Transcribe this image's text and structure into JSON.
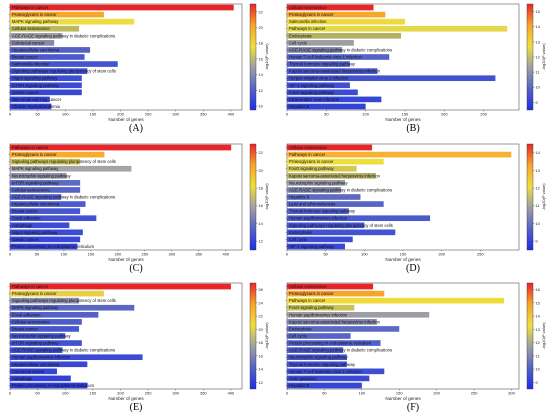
{
  "colormap": [
    "#e8262a",
    "#f7a52c",
    "#eedf3c",
    "#9e9ea6",
    "#5563c6",
    "#1e2de6"
  ],
  "chart_data": [
    {
      "type": "bar",
      "orientation": "horizontal",
      "panel_label": "(A)",
      "categories": [
        "Pathways in cancer",
        "Proteoglycans in cancer",
        "MAPK signaling pathway",
        "Cellular senescence",
        "AGE-RAGE signaling pathway in diabetic complications",
        "Colorectal cancer",
        "Hepatocellular carcinoma",
        "Breast cancer",
        "Salmonella infection",
        "Signaling pathways regulating pluripotency of stem cells",
        "Hippo signaling pathway",
        "mTOR signaling pathway",
        "Gastric cancer",
        "Non-small cell lung cancer",
        "Chronic myeloid leukemia"
      ],
      "values": [
        405,
        170,
        225,
        125,
        95,
        80,
        145,
        135,
        195,
        140,
        130,
        130,
        130,
        72,
        75
      ],
      "colors": [
        "#e8262a",
        "#f7a72b",
        "#eedd3b",
        "#bcb85c",
        "#a0a0a6",
        "#8789a8",
        "#5362c4",
        "#4a5acb",
        "#4454ce",
        "#4151d0",
        "#3e4ed2",
        "#3b4bd3",
        "#3848d5",
        "#3444d7",
        "#3141d9"
      ],
      "xlabel": "Number of genes",
      "xlim": [
        0,
        420
      ],
      "xticks": [
        0,
        50,
        100,
        150,
        200,
        250,
        300,
        350,
        400
      ],
      "colorbar": {
        "label": "-log10(P value)",
        "ticks": [
          22,
          20,
          18,
          16,
          14,
          12,
          10
        ],
        "range": [
          9.5,
          23
        ]
      }
    },
    {
      "type": "bar",
      "orientation": "horizontal",
      "panel_label": "(B)",
      "categories": [
        "Cellular senescence",
        "Proteoglycans in cancer",
        "Salmonella infection",
        "Pathways in cancer",
        "Endocytosis",
        "Cell cycle",
        "AGE-RAGE signaling pathway in diabetic complications",
        "Human T-cell leukemia virus 1 infection",
        "Thyroid hormone signaling pathway",
        "Kaposi sarcoma-associated herpesvirus infection",
        "Herpes simplex virus 1 infection",
        "HIF-1 signaling pathway",
        "FoxO signaling pathway",
        "Epstein-Barr virus infection",
        "Hepatitis B"
      ],
      "values": [
        110,
        125,
        150,
        280,
        145,
        85,
        70,
        130,
        80,
        115,
        265,
        80,
        90,
        120,
        100
      ],
      "colors": [
        "#e8262a",
        "#f6a82c",
        "#efd93d",
        "#e3d848",
        "#b5b162",
        "#9d9ea4",
        "#7e83ae",
        "#5563c5",
        "#4e5dc9",
        "#4858cc",
        "#4353cf",
        "#3f4fd1",
        "#3b4bd3",
        "#3747d5",
        "#3343d8"
      ],
      "xlabel": "Number of genes",
      "xlim": [
        0,
        295
      ],
      "xticks": [
        0,
        50,
        100,
        150,
        200,
        250
      ],
      "colorbar": {
        "label": "-log10(P value)",
        "ticks": [
          15,
          14,
          13,
          12,
          11,
          10,
          9
        ],
        "range": [
          8.5,
          15.5
        ]
      }
    },
    {
      "type": "bar",
      "orientation": "horizontal",
      "panel_label": "(C)",
      "categories": [
        "Pathways in cancer",
        "Proteoglycans in cancer",
        "Signaling pathways regulating pluripotency of stem cells",
        "MAPK signaling pathway",
        "Neurotrophin signaling pathway",
        "mTOR signaling pathway",
        "Cellular senescence",
        "AGE-RAGE signaling pathway in diabetic complications",
        "Hepatocellular carcinoma",
        "Breast cancer",
        "Focal adhesion",
        "Autophagy",
        "Hippo signaling pathway",
        "Gastric cancer",
        "Protein processing in endoplasmic reticulum"
      ],
      "values": [
        410,
        175,
        130,
        225,
        105,
        130,
        130,
        95,
        140,
        130,
        160,
        110,
        135,
        130,
        125
      ],
      "colors": [
        "#e8262a",
        "#f6ac2d",
        "#c6c055",
        "#a3a3a8",
        "#8d90ab",
        "#5d6ac2",
        "#5664c6",
        "#505fc9",
        "#4b5acc",
        "#4656ce",
        "#4252d0",
        "#3e4ed2",
        "#3b4bd4",
        "#3747d6",
        "#3343d8"
      ],
      "xlabel": "Number of genes",
      "xlim": [
        0,
        430
      ],
      "xticks": [
        0,
        50,
        100,
        150,
        200,
        250,
        300,
        350,
        400
      ],
      "colorbar": {
        "label": "-log10(P value)",
        "ticks": [
          22,
          20,
          18,
          16,
          14,
          12
        ],
        "range": [
          11,
          23
        ]
      }
    },
    {
      "type": "bar",
      "orientation": "horizontal",
      "panel_label": "(D)",
      "categories": [
        "Cellular senescence",
        "Pathways in cancer",
        "Proteoglycans in cancer",
        "FoxO signaling pathway",
        "Kaposi sarcoma-associated herpesvirus infection",
        "Neurotrophin signaling pathway",
        "AGE-RAGE signaling pathway in diabetic complications",
        "Hepatitis B",
        "Lipid and atherosclerosis",
        "Thyroid hormone signaling pathway",
        "Human papillomavirus infection",
        "Signaling pathways regulating pluripotency of stem cells",
        "Endocytosis",
        "Cell cycle",
        "HIF-1 signaling pathway"
      ],
      "values": [
        110,
        290,
        125,
        90,
        115,
        75,
        70,
        95,
        125,
        80,
        185,
        100,
        140,
        85,
        75
      ],
      "colors": [
        "#e8262a",
        "#f6b233",
        "#efdf3c",
        "#d3c951",
        "#b5b063",
        "#9a9ba5",
        "#7f84ae",
        "#5d6ac2",
        "#5664c6",
        "#505fc9",
        "#4b5acc",
        "#4656ce",
        "#4252d0",
        "#3d4dd3",
        "#3848d6"
      ],
      "xlabel": "Number of genes",
      "xlim": [
        0,
        300
      ],
      "xticks": [
        0,
        50,
        100,
        150,
        200,
        250
      ],
      "colorbar": {
        "label": "-log10(P value)",
        "ticks": [
          14,
          13,
          12,
          11,
          10,
          9
        ],
        "range": [
          8.5,
          14.5
        ]
      }
    },
    {
      "type": "bar",
      "orientation": "horizontal",
      "panel_label": "(E)",
      "categories": [
        "Pathways in cancer",
        "Proteoglycans in cancer",
        "Signaling pathways regulating pluripotency of stem cells",
        "MAPK signaling pathway",
        "Focal adhesion",
        "Cellular senescence",
        "Breast cancer",
        "Neurotrophin signaling pathway",
        "mTOR signaling pathway",
        "AGE-RAGE signaling pathway in diabetic complications",
        "Human papillomavirus infection",
        "Hepatocellular carcinoma",
        "Colorectal cancer",
        "Autophagy",
        "Protein processing in endoplasmic reticulum"
      ],
      "values": [
        400,
        170,
        125,
        225,
        160,
        130,
        125,
        100,
        130,
        95,
        240,
        140,
        85,
        110,
        140
      ],
      "colors": [
        "#e8262a",
        "#e9cf44",
        "#8e91ad",
        "#5a67c3",
        "#5361c7",
        "#4d5cca",
        "#4858cc",
        "#4454cf",
        "#4151d0",
        "#3e4ed2",
        "#3b4bd3",
        "#3848d5",
        "#3545d6",
        "#3242d8",
        "#2f3fda"
      ],
      "xlabel": "Number of genes",
      "xlim": [
        0,
        420
      ],
      "xticks": [
        0,
        50,
        100,
        150,
        200,
        250,
        300,
        350,
        400
      ],
      "colorbar": {
        "label": "-log10(P value)",
        "ticks": [
          26,
          24,
          22,
          20,
          18,
          16,
          14,
          12
        ],
        "range": [
          11,
          27
        ]
      }
    },
    {
      "type": "bar",
      "orientation": "horizontal",
      "panel_label": "(F)",
      "categories": [
        "Cellular senescence",
        "Proteoglycans in cancer",
        "Pathways in cancer",
        "FoxO signaling pathway",
        "Human papillomavirus infection",
        "Kaposi sarcoma-associated herpesvirus infection",
        "Endocytosis",
        "Cell cycle",
        "Protein processing in endoplasmic reticulum",
        "AGE-RAGE signaling pathway in diabetic complications",
        "Neurotrophin signaling pathway",
        "Thyroid hormone signaling pathway",
        "Human T-cell leukemia virus 1 infection",
        "Axon guidance",
        "Hepatitis B"
      ],
      "values": [
        115,
        130,
        290,
        90,
        190,
        120,
        150,
        85,
        125,
        75,
        80,
        80,
        130,
        110,
        100
      ],
      "colors": [
        "#e8262a",
        "#f6a42b",
        "#efdc3c",
        "#cbc355",
        "#9d9da5",
        "#8286ad",
        "#5d6ac2",
        "#5664c6",
        "#505fc9",
        "#4b5acc",
        "#4656ce",
        "#4252d0",
        "#3e4ed2",
        "#3a4ad4",
        "#3646d7"
      ],
      "xlabel": "Number of genes",
      "xlim": [
        0,
        310
      ],
      "xticks": [
        0,
        50,
        100,
        150,
        200,
        250,
        300
      ],
      "colorbar": {
        "label": "-log10(P value)",
        "ticks": [
          16,
          15,
          14,
          13,
          12,
          11,
          10,
          9
        ],
        "range": [
          8.5,
          16.5
        ]
      }
    }
  ]
}
